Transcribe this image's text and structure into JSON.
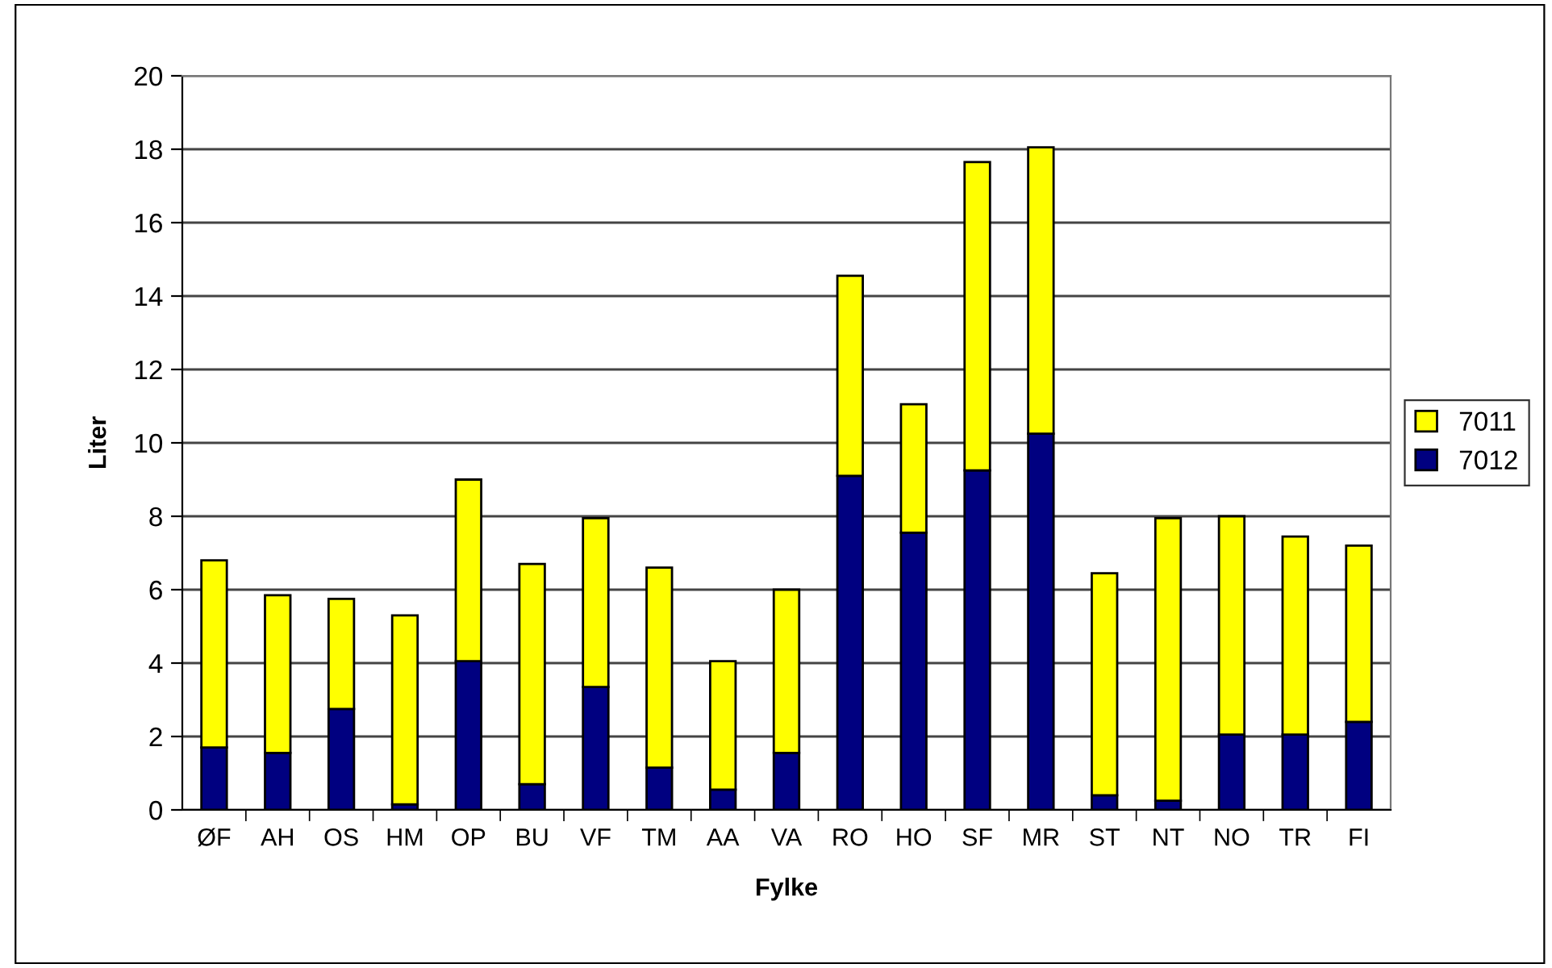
{
  "chart_data": {
    "type": "bar",
    "stacked": true,
    "xlabel": "Fylke",
    "ylabel": "Liter",
    "categories": [
      "ØF",
      "AH",
      "OS",
      "HM",
      "OP",
      "BU",
      "VF",
      "TM",
      "AA",
      "VA",
      "RO",
      "HO",
      "SF",
      "MR",
      "ST",
      "NT",
      "NO",
      "TR",
      "FI"
    ],
    "series": [
      {
        "name": "7012",
        "color": "#000080",
        "values": [
          1.7,
          1.55,
          2.75,
          0.15,
          4.05,
          0.7,
          3.35,
          1.15,
          0.55,
          1.55,
          9.1,
          7.55,
          9.25,
          10.25,
          0.4,
          0.25,
          2.05,
          2.05,
          2.4
        ]
      },
      {
        "name": "7011",
        "color": "#ffff00",
        "values": [
          5.1,
          4.3,
          3.0,
          5.15,
          4.95,
          6.0,
          4.6,
          5.45,
          3.5,
          4.45,
          5.45,
          3.5,
          8.4,
          7.8,
          6.05,
          7.7,
          5.95,
          5.4,
          4.8
        ]
      }
    ],
    "ylim": [
      0,
      20
    ],
    "yticks": [
      0,
      2,
      4,
      6,
      8,
      10,
      12,
      14,
      16,
      18,
      20
    ],
    "grid": "y",
    "legend": "right"
  }
}
